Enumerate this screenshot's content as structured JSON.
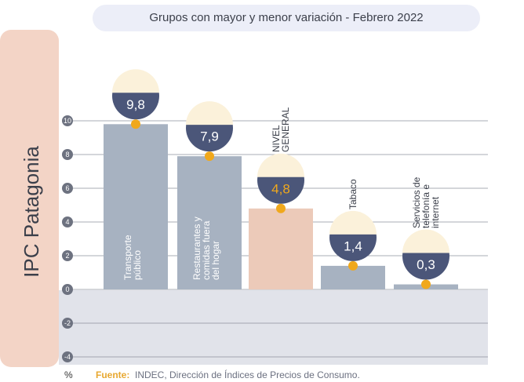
{
  "chart_data": {
    "type": "bar",
    "title": "Grupos con mayor y menor variación - Febrero 2022",
    "side_title": "IPC Patagonia",
    "y_label": "%",
    "source_label": "Fuente:",
    "source": "INDEC, Dirección de Índices de Precios de Consumo.",
    "categories": [
      "Transporte público",
      "Restaurantes y comidas fuera del hogar",
      "NIVEL GENERAL",
      "Tabaco",
      "Servicios de telefonía e internet"
    ],
    "values": [
      9.8,
      7.9,
      4.8,
      1.4,
      0.3
    ],
    "value_labels": [
      "9,8",
      "7,9",
      "4,8",
      "1,4",
      "0,3"
    ],
    "colors": [
      "#a7b2c1",
      "#a7b2c1",
      "#eccab9",
      "#a7b2c1",
      "#a7b2c1"
    ],
    "ylim": [
      -4,
      10
    ],
    "yticks": [
      -4,
      -2,
      0,
      2,
      4,
      6,
      8,
      10
    ],
    "grid": true
  }
}
